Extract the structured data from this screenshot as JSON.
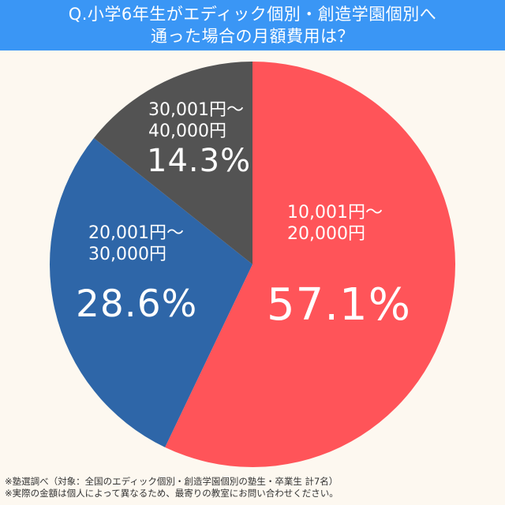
{
  "header": {
    "title_line1": "Q.小学6年生がエディック個別・創造学園個別へ",
    "title_line2": "通った場合の月額費用は？",
    "bg_color": "#3a96f5"
  },
  "chart_data": {
    "type": "pie",
    "title": "Q.小学6年生がエディック個別・創造学園個別へ通った場合の月額費用は？",
    "start_angle": "12 o'clock, clockwise",
    "categories": [
      "10,001円～20,000円",
      "20,001円～30,000円",
      "30,001円～40,000円"
    ],
    "values": [
      57.1,
      28.6,
      14.3
    ],
    "unit": "%",
    "colors": [
      "#ff5459",
      "#2e66a8",
      "#535353"
    ],
    "labels": [
      {
        "range_line1": "10,001円～",
        "range_line2": "20,000円",
        "pct": "57.1%"
      },
      {
        "range_line1": "20,001円～",
        "range_line2": "30,000円",
        "pct": "28.6%"
      },
      {
        "range_line1": "30,001円～",
        "range_line2": "40,000円",
        "pct": "14.3%"
      }
    ],
    "legend": "none (labels inside slices)"
  },
  "footer": {
    "note1": "※塾選調べ（対象：全国のエディック個別・創造学園個別の塾生・卒業生 計7名）",
    "note2": "※実際の金額は個人によって異なるため、最寄りの教室にお問い合わせください。"
  }
}
